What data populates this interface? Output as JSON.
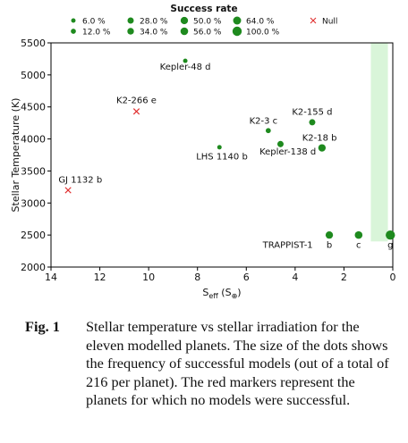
{
  "caption": {
    "label": "Fig. 1",
    "text": "Stellar temperature vs stellar irradiation for the eleven modelled planets. The size of the dots shows the frequency of successful models (out of a total of 216 per planet). The red markers represent the planets for which no models were successful."
  },
  "colors": {
    "success": "#1e8a1e",
    "null": "#e03030",
    "band": "#d9f5d9"
  },
  "chart_data": {
    "type": "scatter",
    "title": "",
    "xlabel": "S_eff (S⊕)",
    "xlabel_main": "S",
    "xlabel_sub": "eff",
    "xlabel_unit": " (S",
    "xlabel_unit_sub": "⊕",
    "xlabel_close": ")",
    "ylabel": "Stellar Temperature (K)",
    "xlim": [
      14,
      0
    ],
    "ylim": [
      2000,
      5500
    ],
    "x_reversed": true,
    "xticks": [
      14,
      12,
      10,
      8,
      6,
      4,
      2,
      0
    ],
    "yticks": [
      2000,
      2500,
      3000,
      3500,
      4000,
      4500,
      5000,
      5500
    ],
    "band": {
      "x_from": 0.9,
      "x_to": 0.2,
      "y_from": 2400,
      "y_to": 5500
    },
    "legend": {
      "title": "Success rate",
      "placement": "top-center",
      "entries": [
        {
          "label": "6.0 %",
          "rate": 6
        },
        {
          "label": "12.0 %",
          "rate": 12
        },
        {
          "label": "28.0 %",
          "rate": 28
        },
        {
          "label": "34.0 %",
          "rate": 34
        },
        {
          "label": "50.0 %",
          "rate": 50
        },
        {
          "label": "56.0 %",
          "rate": 56
        },
        {
          "label": "64.0 %",
          "rate": 64
        },
        {
          "label": "100.0 %",
          "rate": 100
        },
        {
          "label": "Null",
          "rate": null
        }
      ]
    },
    "points": [
      {
        "name": "Kepler-48 d",
        "x": 8.5,
        "y": 5220,
        "rate": 6
      },
      {
        "name": "K2-266 e",
        "x": 10.5,
        "y": 4430,
        "rate": null
      },
      {
        "name": "K2-3 c",
        "x": 5.1,
        "y": 4130,
        "rate": 12
      },
      {
        "name": "K2-155 d",
        "x": 3.3,
        "y": 4260,
        "rate": 28
      },
      {
        "name": "LHS 1140 b",
        "x": 7.1,
        "y": 3870,
        "rate": 6
      },
      {
        "name": "Kepler-138 d",
        "x": 4.6,
        "y": 3920,
        "rate": 28
      },
      {
        "name": "K2-18 b",
        "x": 2.9,
        "y": 3860,
        "rate": 50
      },
      {
        "name": "GJ 1132 b",
        "x": 13.3,
        "y": 3200,
        "rate": null
      },
      {
        "name": "b",
        "x": 2.6,
        "y": 2500,
        "rate": 50
      },
      {
        "name": "c",
        "x": 1.4,
        "y": 2500,
        "rate": 56
      },
      {
        "name": "g",
        "x": 0.1,
        "y": 2500,
        "rate": 100
      }
    ],
    "annotations": [
      {
        "text": "Kepler-48 d",
        "x": 8.5,
        "y": 5080,
        "anchor": "middle"
      },
      {
        "text": "K2-266 e",
        "x": 10.5,
        "y": 4560,
        "anchor": "middle"
      },
      {
        "text": "K2-3 c",
        "x": 5.3,
        "y": 4240,
        "anchor": "middle"
      },
      {
        "text": "K2-155 d",
        "x": 3.3,
        "y": 4380,
        "anchor": "middle"
      },
      {
        "text": "LHS 1140 b",
        "x": 7.0,
        "y": 3680,
        "anchor": "middle"
      },
      {
        "text": "Kepler-138 d",
        "x": 4.3,
        "y": 3760,
        "anchor": "middle"
      },
      {
        "text": "K2-18 b",
        "x": 3.0,
        "y": 3970,
        "anchor": "middle"
      },
      {
        "text": "GJ 1132 b",
        "x": 12.8,
        "y": 3320,
        "anchor": "middle"
      },
      {
        "text": "TRAPPIST-1",
        "x": 4.3,
        "y": 2300,
        "anchor": "middle"
      },
      {
        "text": "b",
        "x": 2.6,
        "y": 2300,
        "anchor": "middle"
      },
      {
        "text": "c",
        "x": 1.4,
        "y": 2300,
        "anchor": "middle"
      },
      {
        "text": "g",
        "x": 0.1,
        "y": 2300,
        "anchor": "middle"
      }
    ]
  }
}
